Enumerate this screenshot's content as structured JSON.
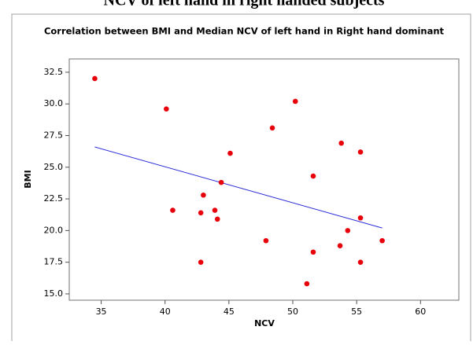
{
  "caption": "NCV of left hand in right handed subjects",
  "chart_data": {
    "type": "scatter",
    "title": "Correlation between BMI and Median NCV of left hand in Right hand dominant",
    "x_label": "NCV",
    "y_label": "BMI",
    "series": [
      {
        "color": "#e8000b",
        "x": [
          34.5,
          40.1,
          40.6,
          42.8,
          43.0,
          42.8,
          43.9,
          44.1,
          44.4,
          45.1,
          47.9,
          48.4,
          50.2,
          51.1,
          51.6,
          51.6,
          53.7,
          53.8,
          54.3,
          55.3,
          55.3,
          55.3,
          57.0
        ],
        "values": [
          32.0,
          29.6,
          21.6,
          21.4,
          22.8,
          17.5,
          21.6,
          20.9,
          23.8,
          26.1,
          19.2,
          28.1,
          30.2,
          15.8,
          24.3,
          18.3,
          18.8,
          26.9,
          20.0,
          26.2,
          21.0,
          17.5,
          19.2
        ]
      }
    ],
    "fit": {
      "color": "#2b2bd6",
      "x": [
        34.5,
        57.0
      ],
      "values": [
        26.6,
        20.2
      ]
    },
    "xlim": [
      32.5,
      63.0
    ],
    "ylim": [
      14.5,
      33.55
    ],
    "xticks": [
      35,
      40,
      45,
      50,
      55,
      60
    ],
    "yticks": [
      {
        "value": 15,
        "label": "15.0"
      },
      {
        "value": 17.5,
        "label": "17.5"
      },
      {
        "value": 20,
        "label": "20.0"
      },
      {
        "value": 22.5,
        "label": "22.5"
      },
      {
        "value": 25,
        "label": "25.0"
      },
      {
        "value": 27.5,
        "label": "27.5"
      },
      {
        "value": 30,
        "label": "30.0"
      },
      {
        "value": 32.5,
        "label": "32.5"
      }
    ]
  }
}
